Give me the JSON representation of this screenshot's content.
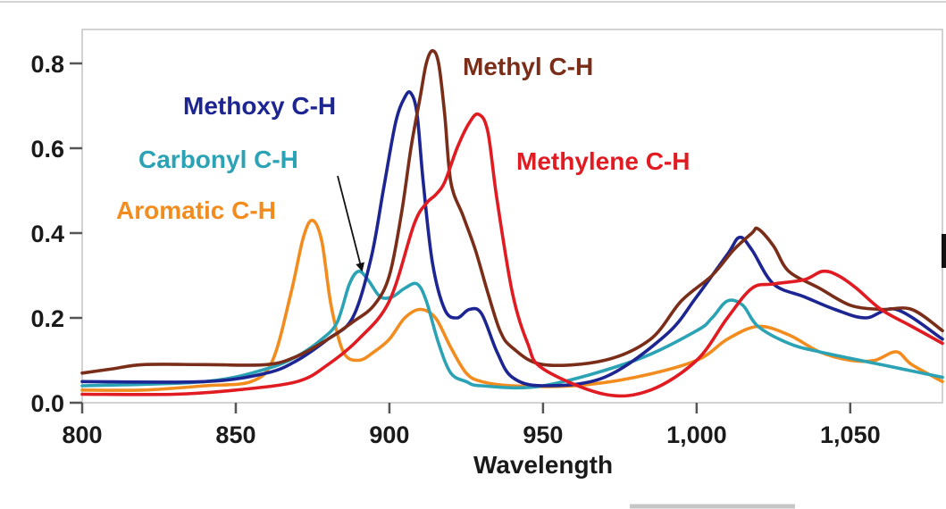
{
  "chart_data": {
    "type": "line",
    "title": "",
    "xlabel": "Wavelength",
    "ylabel": "",
    "xlim": [
      800,
      1080
    ],
    "ylim": [
      0.0,
      0.88
    ],
    "x_ticks": [
      800,
      850,
      900,
      950,
      1000,
      1050
    ],
    "x_tick_labels": [
      "800",
      "850",
      "900",
      "950",
      "1,000",
      "1,050"
    ],
    "y_ticks": [
      0.0,
      0.2,
      0.4,
      0.6,
      0.8
    ],
    "y_tick_labels": [
      "0.0",
      "0.2",
      "0.4",
      "0.6",
      "0.8"
    ],
    "grid": false,
    "series": [
      {
        "name": "Aromatic C-H",
        "label": "Aromatic C-H",
        "color": "#f28c1e",
        "x": [
          800,
          820,
          840,
          855,
          862,
          868,
          872,
          875,
          878,
          881,
          885,
          890,
          895,
          900,
          905,
          910,
          915,
          920,
          925,
          930,
          940,
          960,
          980,
          1000,
          1010,
          1020,
          1030,
          1040,
          1050,
          1058,
          1065,
          1070,
          1080
        ],
        "y": [
          0.03,
          0.03,
          0.04,
          0.05,
          0.1,
          0.26,
          0.39,
          0.43,
          0.38,
          0.23,
          0.12,
          0.1,
          0.12,
          0.15,
          0.2,
          0.22,
          0.2,
          0.13,
          0.07,
          0.05,
          0.04,
          0.04,
          0.06,
          0.1,
          0.15,
          0.18,
          0.16,
          0.12,
          0.1,
          0.1,
          0.12,
          0.09,
          0.05
        ]
      },
      {
        "name": "Carbonyl C-H",
        "label": "Carbonyl C-H",
        "color": "#2ba3b5",
        "x": [
          800,
          840,
          860,
          870,
          878,
          883,
          887,
          890,
          893,
          897,
          901,
          905,
          909,
          912,
          916,
          920,
          925,
          930,
          950,
          980,
          1000,
          1005,
          1010,
          1015,
          1020,
          1030,
          1040,
          1060,
          1080
        ],
        "y": [
          0.04,
          0.05,
          0.08,
          0.11,
          0.15,
          0.19,
          0.28,
          0.31,
          0.29,
          0.25,
          0.25,
          0.27,
          0.28,
          0.24,
          0.14,
          0.07,
          0.05,
          0.04,
          0.04,
          0.1,
          0.17,
          0.2,
          0.24,
          0.23,
          0.18,
          0.14,
          0.12,
          0.09,
          0.06
        ]
      },
      {
        "name": "Methoxy C-H",
        "label": "Methoxy C-H",
        "color": "#1c2591",
        "x": [
          800,
          840,
          860,
          870,
          880,
          888,
          894,
          898,
          902,
          905,
          907,
          909,
          911,
          914,
          918,
          922,
          926,
          930,
          935,
          940,
          950,
          970,
          990,
          1000,
          1010,
          1014,
          1018,
          1025,
          1035,
          1045,
          1055,
          1065,
          1080
        ],
        "y": [
          0.05,
          0.05,
          0.07,
          0.1,
          0.15,
          0.2,
          0.34,
          0.5,
          0.66,
          0.72,
          0.73,
          0.68,
          0.52,
          0.33,
          0.22,
          0.2,
          0.22,
          0.21,
          0.12,
          0.06,
          0.04,
          0.06,
          0.16,
          0.25,
          0.35,
          0.39,
          0.36,
          0.28,
          0.25,
          0.22,
          0.2,
          0.22,
          0.15
        ]
      },
      {
        "name": "Methyl C-H",
        "label": "Methyl C-H",
        "color": "#7a2d18",
        "x": [
          800,
          810,
          820,
          840,
          860,
          870,
          880,
          888,
          895,
          900,
          904,
          907,
          910,
          912,
          914,
          916,
          918,
          920,
          924,
          928,
          932,
          936,
          940,
          950,
          970,
          985,
          995,
          1005,
          1012,
          1018,
          1020,
          1025,
          1030,
          1040,
          1050,
          1060,
          1070,
          1080
        ],
        "y": [
          0.07,
          0.08,
          0.09,
          0.09,
          0.09,
          0.11,
          0.15,
          0.19,
          0.23,
          0.3,
          0.45,
          0.6,
          0.72,
          0.8,
          0.83,
          0.8,
          0.68,
          0.52,
          0.44,
          0.36,
          0.26,
          0.17,
          0.13,
          0.09,
          0.1,
          0.15,
          0.24,
          0.3,
          0.36,
          0.4,
          0.41,
          0.37,
          0.31,
          0.27,
          0.23,
          0.22,
          0.22,
          0.17
        ]
      },
      {
        "name": "Methylene C-H",
        "label": "Methylene C-H",
        "color": "#e01b22",
        "x": [
          800,
          830,
          850,
          870,
          880,
          890,
          900,
          908,
          912,
          915,
          918,
          922,
          926,
          929,
          932,
          935,
          940,
          945,
          950,
          970,
          985,
          1000,
          1010,
          1018,
          1025,
          1035,
          1041,
          1046,
          1052,
          1060,
          1070,
          1080
        ],
        "y": [
          0.02,
          0.02,
          0.03,
          0.05,
          0.09,
          0.15,
          0.24,
          0.42,
          0.47,
          0.49,
          0.52,
          0.6,
          0.66,
          0.68,
          0.64,
          0.48,
          0.26,
          0.14,
          0.08,
          0.02,
          0.03,
          0.1,
          0.2,
          0.27,
          0.28,
          0.29,
          0.31,
          0.3,
          0.27,
          0.22,
          0.18,
          0.14
        ]
      }
    ],
    "annotations": [
      {
        "text": "Aromatic C-H",
        "series": "Aromatic C-H"
      },
      {
        "text": "Carbonyl C-H",
        "series": "Carbonyl C-H",
        "arrow_to": [
          889,
          0.3
        ]
      },
      {
        "text": "Methoxy C-H",
        "series": "Methoxy C-H"
      },
      {
        "text": "Methyl C-H",
        "series": "Methyl C-H"
      },
      {
        "text": "Methylene C-H",
        "series": "Methylene C-H"
      }
    ]
  }
}
